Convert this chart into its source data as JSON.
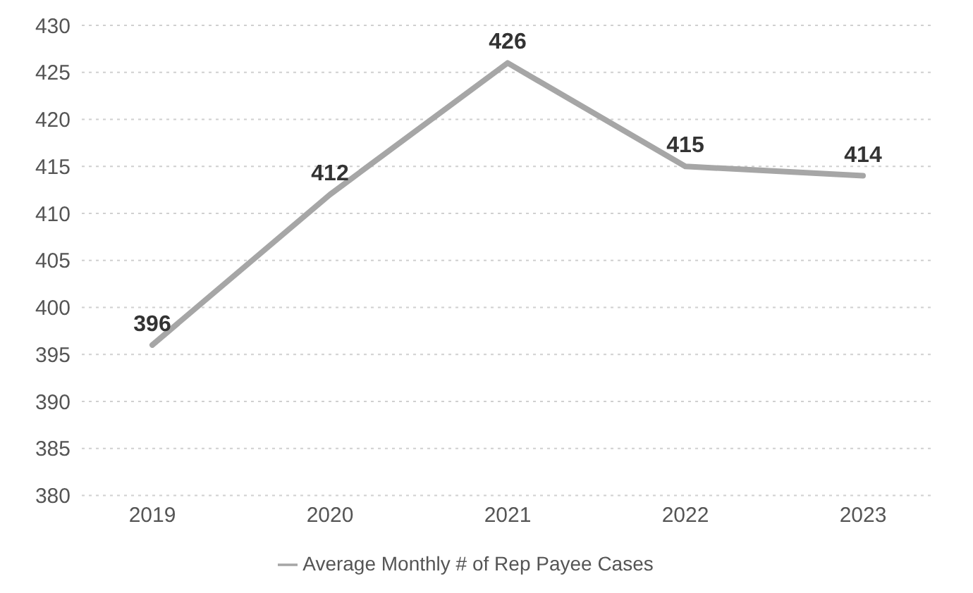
{
  "chart_data": {
    "type": "line",
    "categories": [
      "2019",
      "2020",
      "2021",
      "2022",
      "2023"
    ],
    "series": [
      {
        "name": "Average Monthly # of Rep Payee Cases",
        "color": "#a6a6a6",
        "values": [
          396,
          412,
          426,
          415,
          414
        ]
      }
    ],
    "ylim": [
      380,
      430
    ],
    "yticks": [
      380,
      385,
      390,
      395,
      400,
      405,
      410,
      415,
      420,
      425,
      430
    ],
    "grid": "y",
    "legend": "bottom",
    "marker": "none",
    "line_style": "solid",
    "data_labels": true
  }
}
